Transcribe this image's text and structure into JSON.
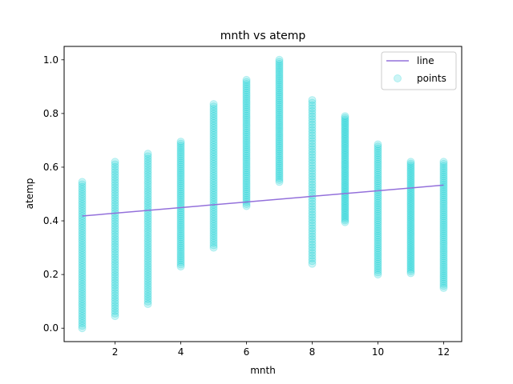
{
  "chart_data": {
    "type": "scatter",
    "title": "mnth vs atemp",
    "xlabel": "mnth",
    "ylabel": "atemp",
    "xlim": [
      0.45,
      12.55
    ],
    "ylim": [
      -0.05,
      1.05
    ],
    "xticks": [
      2,
      4,
      6,
      8,
      10,
      12
    ],
    "yticks": [
      0.0,
      0.2,
      0.4,
      0.6,
      0.8,
      1.0
    ],
    "xtick_labels": [
      "2",
      "4",
      "6",
      "8",
      "10",
      "12"
    ],
    "ytick_labels": [
      "0.0",
      "0.2",
      "0.4",
      "0.6",
      "0.8",
      "1.0"
    ],
    "legend_position": "top-right",
    "series": [
      {
        "name": "line",
        "kind": "line",
        "color": "#9370db",
        "x": [
          1,
          12
        ],
        "y": [
          0.418,
          0.533
        ]
      },
      {
        "name": "points",
        "kind": "scatter",
        "color": "#00ced1",
        "alpha": 0.2,
        "groups": [
          {
            "x": 1,
            "y_min": 0.0,
            "y_max": 0.545
          },
          {
            "x": 2,
            "y_min": 0.045,
            "y_max": 0.62
          },
          {
            "x": 3,
            "y_min": 0.09,
            "y_max": 0.65
          },
          {
            "x": 4,
            "y_min": 0.23,
            "y_max": 0.695
          },
          {
            "x": 5,
            "y_min": 0.3,
            "y_max": 0.835
          },
          {
            "x": 6,
            "y_min": 0.455,
            "y_max": 0.925
          },
          {
            "x": 7,
            "y_min": 0.545,
            "y_max": 1.0
          },
          {
            "x": 8,
            "y_min": 0.24,
            "y_max": 0.85
          },
          {
            "x": 9,
            "y_min": 0.395,
            "y_max": 0.79
          },
          {
            "x": 10,
            "y_min": 0.2,
            "y_max": 0.685
          },
          {
            "x": 11,
            "y_min": 0.205,
            "y_max": 0.62
          },
          {
            "x": 12,
            "y_min": 0.15,
            "y_max": 0.62
          }
        ]
      }
    ]
  }
}
